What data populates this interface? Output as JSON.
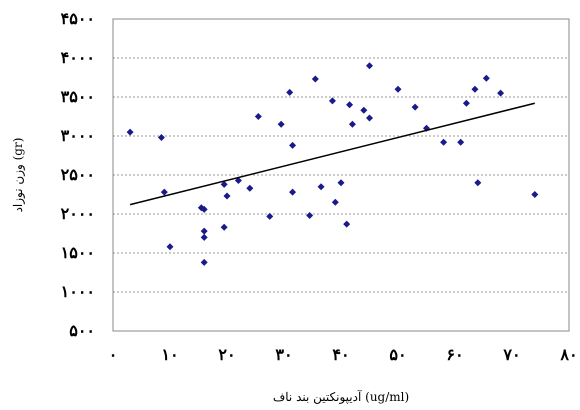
{
  "chart_data": {
    "type": "scatter",
    "title": "",
    "xlabel": "آدیپونکتین بند ناف (ug/ml)",
    "ylabel": "وزن نوزاد (gr)",
    "xlim": [
      0,
      80
    ],
    "ylim": [
      500,
      4500
    ],
    "x_ticks": [
      "۰",
      "۱۰",
      "۲۰",
      "۳۰",
      "۴۰",
      "۵۰",
      "۶۰",
      "۷۰",
      "۸۰"
    ],
    "y_ticks": [
      "۵۰۰",
      "۱۰۰۰",
      "۱۵۰۰",
      "۲۰۰۰",
      "۲۵۰۰",
      "۳۰۰۰",
      "۳۵۰۰",
      "۴۰۰۰",
      "۴۵۰۰"
    ],
    "gridlines": "horizontal dotted",
    "marker_color": "#1a1a8c",
    "points": [
      [
        3,
        3050
      ],
      [
        8.5,
        2980
      ],
      [
        9,
        2280
      ],
      [
        10,
        1580
      ],
      [
        15.5,
        2080
      ],
      [
        16,
        1700
      ],
      [
        16,
        1780
      ],
      [
        16,
        2060
      ],
      [
        16,
        1380
      ],
      [
        19.5,
        1830
      ],
      [
        19.5,
        2380
      ],
      [
        20,
        2230
      ],
      [
        22,
        2430
      ],
      [
        24,
        2330
      ],
      [
        25.5,
        3250
      ],
      [
        27.5,
        1970
      ],
      [
        29.5,
        3150
      ],
      [
        31,
        3560
      ],
      [
        31.5,
        2880
      ],
      [
        31.5,
        2280
      ],
      [
        34.5,
        1980
      ],
      [
        35.5,
        3730
      ],
      [
        36.5,
        2350
      ],
      [
        38.5,
        3450
      ],
      [
        39,
        2150
      ],
      [
        40,
        2400
      ],
      [
        41,
        1870
      ],
      [
        41.5,
        3400
      ],
      [
        42,
        3150
      ],
      [
        44,
        3330
      ],
      [
        45,
        3230
      ],
      [
        45,
        3900
      ],
      [
        50,
        3600
      ],
      [
        53,
        3370
      ],
      [
        55,
        3100
      ],
      [
        58,
        2920
      ],
      [
        61,
        2920
      ],
      [
        62,
        3420
      ],
      [
        63.5,
        3600
      ],
      [
        64,
        2400
      ],
      [
        65.5,
        3740
      ],
      [
        68,
        3550
      ],
      [
        74,
        2250
      ]
    ],
    "trendline": {
      "x": [
        3,
        74
      ],
      "y": [
        2120,
        3420
      ]
    }
  }
}
